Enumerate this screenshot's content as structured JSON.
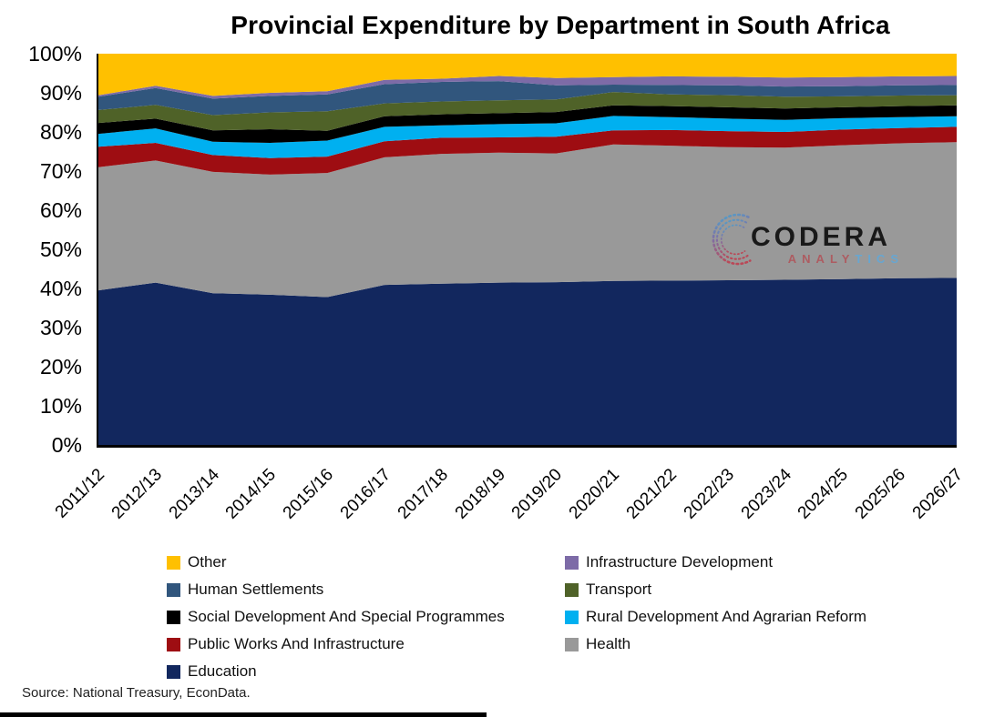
{
  "title": "Provincial Expenditure by Department in South Africa",
  "source_note": "Source: National Treasury, EconData.",
  "watermark": {
    "brand": "CODERA",
    "sub_part1": "ANALY",
    "sub_part2": "TICS"
  },
  "y_axis": {
    "ticks": [
      "100%",
      "90%",
      "80%",
      "70%",
      "60%",
      "50%",
      "40%",
      "30%",
      "20%",
      "10%",
      "0%"
    ]
  },
  "chart_data": {
    "type": "area",
    "stacked": true,
    "title": "Provincial Expenditure by Department in South Africa",
    "xlabel": "",
    "ylabel": "",
    "unit": "%",
    "ylim": [
      0,
      100
    ],
    "grid": false,
    "legend_position": "bottom-two-columns",
    "categories": [
      "2011/12",
      "2012/13",
      "2013/14",
      "2014/15",
      "2015/16",
      "2016/17",
      "2017/18",
      "2018/19",
      "2019/20",
      "2020/21",
      "2021/22",
      "2022/23",
      "2023/24",
      "2024/25",
      "2025/26",
      "2026/27"
    ],
    "series": [
      {
        "name": "Education",
        "color": "#12275E",
        "values": [
          39.5,
          41.5,
          38.8,
          38.4,
          37.8,
          40.9,
          41.2,
          41.5,
          41.6,
          41.9,
          42.0,
          42.1,
          42.2,
          42.4,
          42.6,
          42.7
        ]
      },
      {
        "name": "Health",
        "color": "#999999",
        "values": [
          31.5,
          31.2,
          31.0,
          30.7,
          31.7,
          32.6,
          33.2,
          33.2,
          32.9,
          34.9,
          34.5,
          34.0,
          33.8,
          34.2,
          34.5,
          34.7
        ]
      },
      {
        "name": "Public Works And Infrastructure",
        "color": "#9E0D12",
        "values": [
          5.2,
          4.5,
          4.3,
          4.2,
          4.2,
          4.1,
          4.1,
          3.9,
          4.3,
          3.6,
          4.0,
          4.1,
          4.0,
          4.0,
          3.9,
          3.9
        ]
      },
      {
        "name": "Rural Development And Agrarian Reform",
        "color": "#00B0F0",
        "values": [
          3.3,
          3.7,
          3.4,
          3.9,
          4.1,
          3.7,
          3.2,
          3.4,
          3.4,
          3.7,
          3.3,
          3.2,
          3.1,
          2.9,
          2.8,
          2.7
        ]
      },
      {
        "name": "Social Development And Special Programmes",
        "color": "#000000",
        "values": [
          2.8,
          2.5,
          2.9,
          3.5,
          2.5,
          2.7,
          2.8,
          2.8,
          2.9,
          2.7,
          2.8,
          2.9,
          2.9,
          2.8,
          2.8,
          2.8
        ]
      },
      {
        "name": "Transport",
        "color": "#4F6228",
        "values": [
          3.3,
          3.5,
          3.9,
          4.3,
          5.0,
          3.3,
          3.3,
          3.3,
          3.2,
          3.4,
          3.0,
          3.1,
          3.0,
          2.8,
          2.7,
          2.6
        ]
      },
      {
        "name": "Human Settlements",
        "color": "#31567D",
        "values": [
          3.4,
          4.3,
          4.2,
          4.2,
          4.3,
          4.9,
          5.0,
          4.9,
          3.6,
          1.9,
          2.4,
          2.5,
          2.6,
          2.6,
          2.6,
          2.6
        ]
      },
      {
        "name": "Infrastructure Development",
        "color": "#7D6BA7",
        "values": [
          0.4,
          0.6,
          0.7,
          0.8,
          0.8,
          1.1,
          0.8,
          1.3,
          1.9,
          1.9,
          2.2,
          2.2,
          2.3,
          2.3,
          2.3,
          2.3
        ]
      },
      {
        "name": "Other",
        "color": "#FFC000",
        "values": [
          10.6,
          8.2,
          10.8,
          10.0,
          9.6,
          6.7,
          6.4,
          5.7,
          6.2,
          6.0,
          5.8,
          5.9,
          6.1,
          6.0,
          5.8,
          5.7
        ]
      }
    ],
    "legend": {
      "left_column": [
        {
          "label": "Other",
          "color": "#FFC000"
        },
        {
          "label": "Human Settlements",
          "color": "#31567D"
        },
        {
          "label": "Social Development And Special Programmes",
          "color": "#000000"
        },
        {
          "label": "Public Works And Infrastructure",
          "color": "#9E0D12"
        },
        {
          "label": "Education",
          "color": "#12275E"
        }
      ],
      "right_column": [
        {
          "label": "Infrastructure Development",
          "color": "#7D6BA7"
        },
        {
          "label": "Transport",
          "color": "#4F6228"
        },
        {
          "label": "Rural Development And Agrarian Reform",
          "color": "#00B0F0"
        },
        {
          "label": "Health",
          "color": "#999999"
        }
      ]
    }
  }
}
